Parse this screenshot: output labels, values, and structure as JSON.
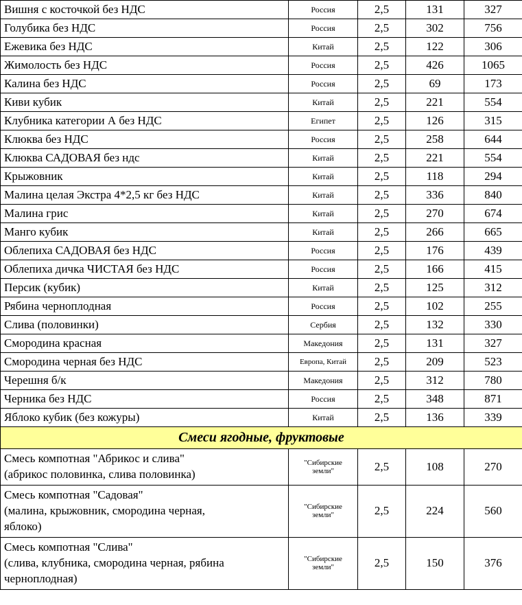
{
  "colors": {
    "section_bg": "#ffff99",
    "border": "#000000",
    "bg": "#ffffff"
  },
  "rows": [
    {
      "name": "Вишня с косточкой без НДС",
      "origin": "Россия",
      "weight": "2,5",
      "p1": "131",
      "p2": "327"
    },
    {
      "name": "Голубика без НДС",
      "origin": "Россия",
      "weight": "2,5",
      "p1": "302",
      "p2": "756"
    },
    {
      "name": "Ежевика без НДС",
      "origin": "Китай",
      "weight": "2,5",
      "p1": "122",
      "p2": "306"
    },
    {
      "name": "Жимолость без  НДС",
      "origin": "Россия",
      "weight": "2,5",
      "p1": "426",
      "p2": "1065"
    },
    {
      "name": "Калина  без НДС",
      "origin": "Россия",
      "weight": "2,5",
      "p1": "69",
      "p2": "173"
    },
    {
      "name": "Киви кубик",
      "origin": "Китай",
      "weight": "2,5",
      "p1": "221",
      "p2": "554"
    },
    {
      "name": "Клубника   категории А без НДС",
      "origin": "Египет",
      "weight": "2,5",
      "p1": "126",
      "p2": "315"
    },
    {
      "name": "Клюква   без НДС",
      "origin": "Россия",
      "weight": "2,5",
      "p1": "258",
      "p2": "644"
    },
    {
      "name": "Клюква САДОВАЯ       без ндс",
      "origin": "Китай",
      "weight": "2,5",
      "p1": "221",
      "p2": "554"
    },
    {
      "name": "Крыжовник",
      "origin": "Китай",
      "weight": "2,5",
      "p1": "118",
      "p2": "294"
    },
    {
      "name": "Малина целая Экстра 4*2,5 кг без НДС",
      "origin": "Китай",
      "weight": "2,5",
      "p1": "336",
      "p2": "840"
    },
    {
      "name": "Малина грис",
      "origin": "Китай",
      "weight": "2,5",
      "p1": "270",
      "p2": "674"
    },
    {
      "name": "Манго кубик",
      "origin": "Китай",
      "weight": "2,5",
      "p1": "266",
      "p2": "665"
    },
    {
      "name": "Облепиха  САДОВАЯ без НДС",
      "origin": "Россия",
      "weight": "2,5",
      "p1": "176",
      "p2": "439"
    },
    {
      "name": "Облепиха дичка ЧИСТАЯ  без НДС",
      "origin": "Россия",
      "weight": "2,5",
      "p1": "166",
      "p2": "415"
    },
    {
      "name": "Персик (кубик)",
      "origin": "Китай",
      "weight": "2,5",
      "p1": "125",
      "p2": "312"
    },
    {
      "name": "Рябина черноплодная",
      "origin": "Россия",
      "weight": "2,5",
      "p1": "102",
      "p2": "255"
    },
    {
      "name": "Слива (половинки)",
      "origin": "Сербия",
      "weight": "2,5",
      "p1": "132",
      "p2": "330"
    },
    {
      "name": "Смородина красная",
      "origin": "Македония",
      "weight": "2,5",
      "p1": "131",
      "p2": "327"
    },
    {
      "name": "Смородина черная           без НДС",
      "origin": "Европа, Китай",
      "weight": "2,5",
      "p1": "209",
      "p2": "523"
    },
    {
      "name": "Черешня б/к",
      "origin": "Македония",
      "weight": "2,5",
      "p1": "312",
      "p2": "780"
    },
    {
      "name": "Черника      без НДС",
      "origin": "Россия",
      "weight": "2,5",
      "p1": "348",
      "p2": "871"
    },
    {
      "name": "Яблоко кубик (без кожуры)",
      "origin": "Китай",
      "weight": "2,5",
      "p1": "136",
      "p2": "339"
    }
  ],
  "section_title": "Смеси ягодные, фруктовые",
  "mixes": [
    {
      "name_line1": "Смесь компотная \"Абрикос и слива\"",
      "name_line2": "(абрикос половинка, слива половинка)",
      "origin_line1": "\"Сибирские",
      "origin_line2": "земли\"",
      "weight": "2,5",
      "p1": "108",
      "p2": "270"
    },
    {
      "name_line1": "Смесь компотная  \"Садовая\"",
      "name_line2": "(малина, крыжовник, смородина черная,",
      "name_line3": "яблоко)",
      "origin_line1": "\"Сибирские",
      "origin_line2": "земли\"",
      "weight": "2,5",
      "p1": "224",
      "p2": "560"
    },
    {
      "name_line1": "Смесь компотная  \"Слива\"",
      "name_line2": "(слива, клубника, смородина черная, рябина",
      "name_line3": "черноплодная)",
      "origin_line1": "\"Сибирские",
      "origin_line2": "земли\"",
      "weight": "2,5",
      "p1": "150",
      "p2": "376"
    }
  ]
}
